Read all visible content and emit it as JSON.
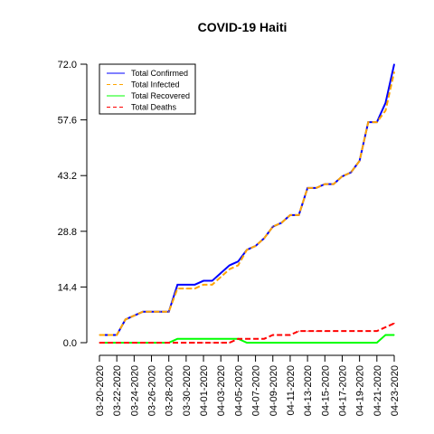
{
  "chart_data": {
    "type": "line",
    "title": "COVID-19 Haiti",
    "xlabel": "",
    "ylabel": "",
    "ylim": [
      0,
      72
    ],
    "y_ticks": [
      "0.0",
      "14.4",
      "28.8",
      "43.2",
      "57.6",
      "72.0"
    ],
    "y_tick_values": [
      0,
      14.4,
      28.8,
      43.2,
      57.6,
      72.0
    ],
    "x": [
      "03-20-2020",
      "03-21-2020",
      "03-22-2020",
      "03-23-2020",
      "03-24-2020",
      "03-25-2020",
      "03-26-2020",
      "03-27-2020",
      "03-28-2020",
      "03-29-2020",
      "03-30-2020",
      "03-31-2020",
      "04-01-2020",
      "04-02-2020",
      "04-03-2020",
      "04-04-2020",
      "04-05-2020",
      "04-06-2020",
      "04-07-2020",
      "04-08-2020",
      "04-09-2020",
      "04-10-2020",
      "04-11-2020",
      "04-12-2020",
      "04-13-2020",
      "04-14-2020",
      "04-15-2020",
      "04-16-2020",
      "04-17-2020",
      "04-18-2020",
      "04-19-2020",
      "04-20-2020",
      "04-21-2020",
      "04-22-2020",
      "04-23-2020"
    ],
    "x_tick_labels": [
      "03-20-2020",
      "03-22-2020",
      "03-24-2020",
      "03-26-2020",
      "03-28-2020",
      "03-30-2020",
      "04-01-2020",
      "04-03-2020",
      "04-05-2020",
      "04-07-2020",
      "04-09-2020",
      "04-11-2020",
      "04-13-2020",
      "04-15-2020",
      "04-17-2020",
      "04-19-2020",
      "04-21-2020",
      "04-23-2020"
    ],
    "legend_position": "top-left",
    "grid": false,
    "series": [
      {
        "name": "Total Confirmed",
        "color": "#0000ff",
        "dash": "solid",
        "values": [
          2,
          2,
          2,
          6,
          7,
          8,
          8,
          8,
          8,
          15,
          15,
          15,
          16,
          16,
          18,
          20,
          21,
          24,
          25,
          27,
          30,
          31,
          33,
          33,
          40,
          40,
          41,
          41,
          43,
          44,
          47,
          57,
          57,
          62,
          72
        ]
      },
      {
        "name": "Total Infected",
        "color": "#ffa500",
        "dash": "dashed",
        "values": [
          2,
          2,
          2,
          6,
          7,
          8,
          8,
          8,
          8,
          14,
          14,
          14,
          15,
          15,
          17,
          19,
          20,
          24,
          25,
          27,
          30,
          31,
          33,
          33,
          40,
          40,
          41,
          41,
          43,
          44,
          47,
          57,
          57,
          60,
          70
        ]
      },
      {
        "name": "Total Recovered",
        "color": "#00ff00",
        "dash": "solid",
        "values": [
          0,
          0,
          0,
          0,
          0,
          0,
          0,
          0,
          0,
          1,
          1,
          1,
          1,
          1,
          1,
          1,
          1,
          0,
          0,
          0,
          0,
          0,
          0,
          0,
          0,
          0,
          0,
          0,
          0,
          0,
          0,
          0,
          0,
          2,
          2
        ]
      },
      {
        "name": "Total Deaths",
        "color": "#ff0000",
        "dash": "dashed",
        "values": [
          0,
          0,
          0,
          0,
          0,
          0,
          0,
          0,
          0,
          0,
          0,
          0,
          0,
          0,
          0,
          0,
          1,
          1,
          1,
          1,
          2,
          2,
          2,
          3,
          3,
          3,
          3,
          3,
          3,
          3,
          3,
          3,
          3,
          4,
          5
        ]
      }
    ]
  }
}
